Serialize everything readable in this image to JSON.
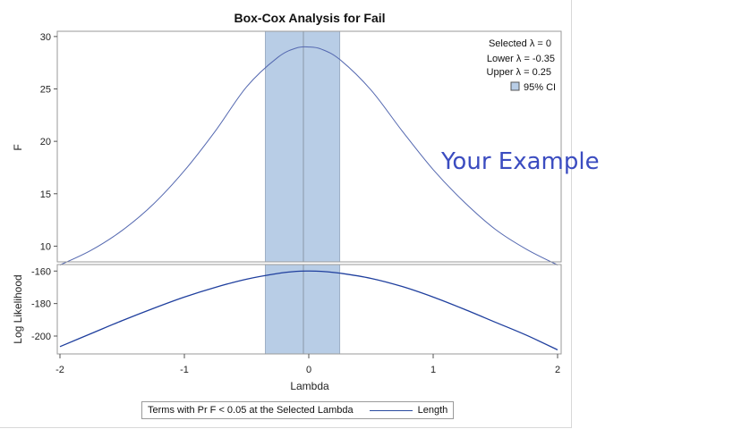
{
  "chart_data": [
    {
      "type": "line",
      "title": "Box-Cox Analysis for Fail",
      "xlabel": "",
      "ylabel": "F",
      "xlim": [
        -2,
        2
      ],
      "ylim": [
        8.5,
        30.5
      ],
      "yticks": [
        10,
        15,
        20,
        25,
        30
      ],
      "grid": false,
      "band": {
        "from": -0.35,
        "to": 0.25,
        "color": "#b8cde6"
      },
      "selected_line": 0,
      "x": [
        -2,
        -1.75,
        -1.5,
        -1.25,
        -1,
        -0.75,
        -0.5,
        -0.25,
        -0.1,
        0,
        0.1,
        0.25,
        0.5,
        0.75,
        1,
        1.25,
        1.5,
        1.75,
        2
      ],
      "series": [
        {
          "values": [
            8.2,
            9.6,
            11.5,
            14.0,
            17.2,
            21.0,
            25.2,
            28.0,
            28.9,
            29.0,
            28.8,
            27.8,
            24.9,
            21.0,
            17.3,
            14.2,
            11.6,
            9.7,
            8.2
          ]
        }
      ],
      "annotations": [
        "Selected λ = 0",
        "Lower λ = -0.35",
        "Upper λ = 0.25",
        "95% CI"
      ]
    },
    {
      "type": "line",
      "xlabel": "Lambda",
      "ylabel": "Log Likelihood",
      "xlim": [
        -2,
        2
      ],
      "ylim": [
        -211,
        -156
      ],
      "yticks": [
        -160,
        -180,
        -200
      ],
      "xticks": [
        "-2",
        "-1",
        "0",
        "1",
        "2"
      ],
      "grid": false,
      "band": {
        "from": -0.35,
        "to": 0.25,
        "color": "#b8cde6"
      },
      "selected_line": 0,
      "x": [
        -2,
        -1.75,
        -1.5,
        -1.25,
        -1,
        -0.75,
        -0.5,
        -0.25,
        -0.1,
        0,
        0.1,
        0.25,
        0.5,
        0.75,
        1,
        1.25,
        1.5,
        1.75,
        2
      ],
      "series": [
        {
          "name": "Length",
          "values": [
            -206.5,
            -198.5,
            -190.5,
            -183.0,
            -176.0,
            -170.0,
            -165.0,
            -161.5,
            -160.2,
            -160.0,
            -160.2,
            -161.3,
            -164.5,
            -169.5,
            -176.0,
            -183.5,
            -191.5,
            -199.5,
            -208.5
          ]
        }
      ]
    }
  ],
  "legend": {
    "caption": "Terms with Pr F < 0.05 at the Selected Lambda",
    "series_label": "Length",
    "line_color": "#2a4ba0"
  },
  "watermark": "Your Example",
  "colors": {
    "band": "#b8cde6",
    "band_edge": "#8a9bb0",
    "line_top": "#5468b0",
    "line_bottom": "#1f3f9e",
    "frame": "#9a9a9a"
  }
}
